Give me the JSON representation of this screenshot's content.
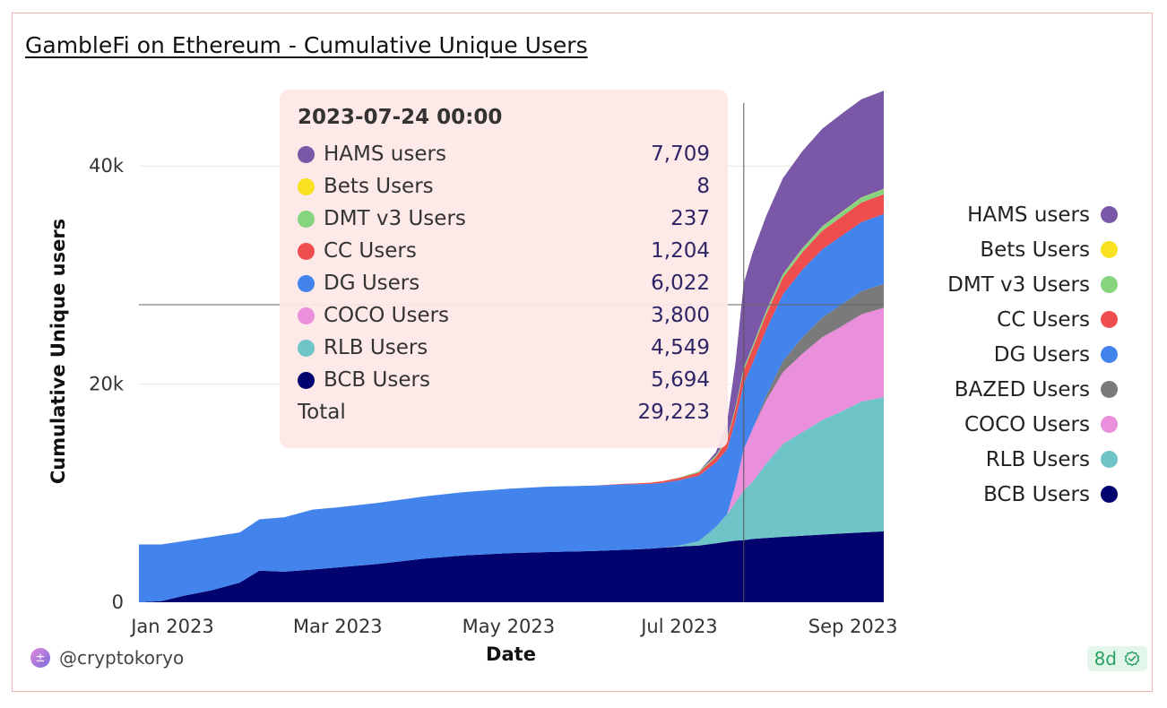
{
  "title": "GambleFi on Ethereum - Cumulative Unique Users",
  "author": "@cryptokoryo",
  "badge": "8d",
  "colors": {
    "HAMS users": "#7b57a8",
    "Bets Users": "#f7e120",
    "DMT v3 Users": "#86d47e",
    "CC Users": "#f04e4e",
    "DG Users": "#4383ec",
    "BAZED Users": "#7a7a7a",
    "COCO Users": "#ea8fdc",
    "RLB Users": "#6fc4c8",
    "BCB Users": "#02036f"
  },
  "legend": [
    "HAMS users",
    "Bets Users",
    "DMT v3 Users",
    "CC Users",
    "DG Users",
    "BAZED Users",
    "COCO Users",
    "RLB Users",
    "BCB Users"
  ],
  "tooltip": {
    "date": "2023-07-24 00:00",
    "rows": [
      {
        "name": "HAMS users",
        "value": "7,709"
      },
      {
        "name": "Bets Users",
        "value": "8"
      },
      {
        "name": "DMT v3 Users",
        "value": "237"
      },
      {
        "name": "CC Users",
        "value": "1,204"
      },
      {
        "name": "DG Users",
        "value": "6,022"
      },
      {
        "name": "COCO Users",
        "value": "3,800"
      },
      {
        "name": "RLB Users",
        "value": "4,549"
      },
      {
        "name": "BCB Users",
        "value": "5,694"
      }
    ],
    "total_label": "Total",
    "total_value": "29,223"
  },
  "chart_data": {
    "type": "area",
    "stacked": true,
    "xlabel": "Date",
    "ylabel": "Cumulative Unique users",
    "ylim": [
      0,
      47000
    ],
    "yticks": [
      0,
      20000,
      40000
    ],
    "ytick_labels": [
      "0",
      "20k",
      "40k"
    ],
    "xticks": [
      "2023-01-01",
      "2023-03-01",
      "2023-05-01",
      "2023-07-01",
      "2023-09-01"
    ],
    "xtick_labels": [
      "Jan 2023",
      "Mar 2023",
      "May 2023",
      "Jul 2023",
      "Sep 2023"
    ],
    "xlim": [
      "2022-12-20",
      "2023-09-12"
    ],
    "hover_date": "2023-07-24",
    "x": [
      "2022-12-20",
      "2022-12-28",
      "2023-01-05",
      "2023-01-15",
      "2023-01-25",
      "2023-02-01",
      "2023-02-10",
      "2023-02-20",
      "2023-03-01",
      "2023-03-15",
      "2023-04-01",
      "2023-04-15",
      "2023-05-01",
      "2023-05-15",
      "2023-06-01",
      "2023-06-10",
      "2023-06-20",
      "2023-06-25",
      "2023-07-01",
      "2023-07-08",
      "2023-07-14",
      "2023-07-18",
      "2023-07-21",
      "2023-07-24",
      "2023-07-27",
      "2023-08-01",
      "2023-08-07",
      "2023-08-14",
      "2023-08-21",
      "2023-08-28",
      "2023-09-04",
      "2023-09-12"
    ],
    "series": [
      {
        "name": "BCB Users",
        "values": [
          0,
          100,
          600,
          1100,
          1800,
          2900,
          2800,
          3000,
          3200,
          3500,
          4000,
          4300,
          4500,
          4600,
          4700,
          4800,
          4900,
          5000,
          5100,
          5200,
          5400,
          5550,
          5650,
          5694,
          5800,
          5900,
          6000,
          6100,
          6200,
          6300,
          6400,
          6500
        ]
      },
      {
        "name": "RLB Users",
        "values": [
          0,
          0,
          0,
          0,
          0,
          0,
          0,
          0,
          0,
          0,
          0,
          0,
          0,
          0,
          0,
          0,
          0,
          0,
          100,
          400,
          1500,
          2500,
          3500,
          4549,
          5200,
          6800,
          8500,
          9500,
          10500,
          11200,
          12000,
          12300
        ]
      },
      {
        "name": "COCO Users",
        "values": [
          0,
          0,
          0,
          0,
          0,
          0,
          0,
          0,
          0,
          0,
          0,
          0,
          0,
          0,
          0,
          0,
          0,
          0,
          0,
          0,
          0,
          0,
          1500,
          3800,
          4800,
          5800,
          6600,
          7200,
          7600,
          7800,
          8000,
          8200
        ]
      },
      {
        "name": "BAZED Users",
        "values": [
          0,
          0,
          0,
          0,
          0,
          0,
          0,
          0,
          0,
          0,
          0,
          0,
          0,
          0,
          0,
          0,
          0,
          0,
          0,
          0,
          0,
          0,
          0,
          0,
          0,
          400,
          1000,
          1500,
          1800,
          2000,
          2100,
          2200
        ]
      },
      {
        "name": "DG Users",
        "values": [
          5300,
          5200,
          5000,
          4900,
          4600,
          4700,
          5000,
          5500,
          5500,
          5600,
          5700,
          5800,
          5900,
          6000,
          6000,
          6000,
          5950,
          5950,
          6000,
          6000,
          5900,
          5950,
          6000,
          6022,
          6050,
          6100,
          6150,
          6200,
          6250,
          6300,
          6350,
          6400
        ]
      },
      {
        "name": "CC Users",
        "values": [
          0,
          0,
          0,
          0,
          0,
          0,
          0,
          0,
          0,
          0,
          0,
          0,
          0,
          0,
          0,
          50,
          100,
          150,
          200,
          300,
          500,
          800,
          1000,
          1204,
          1300,
          1400,
          1500,
          1600,
          1700,
          1750,
          1800,
          1800
        ]
      },
      {
        "name": "DMT v3 Users",
        "values": [
          0,
          0,
          0,
          0,
          0,
          0,
          0,
          0,
          0,
          0,
          0,
          0,
          0,
          0,
          0,
          0,
          0,
          0,
          50,
          100,
          150,
          180,
          200,
          237,
          270,
          300,
          330,
          360,
          390,
          420,
          450,
          480
        ]
      },
      {
        "name": "Bets Users",
        "values": [
          0,
          0,
          0,
          0,
          0,
          0,
          0,
          0,
          0,
          0,
          0,
          0,
          0,
          0,
          0,
          0,
          0,
          0,
          0,
          0,
          0,
          3,
          5,
          8,
          10,
          12,
          14,
          16,
          18,
          20,
          22,
          24
        ]
      },
      {
        "name": "HAMS users",
        "values": [
          0,
          0,
          0,
          0,
          0,
          0,
          0,
          0,
          0,
          0,
          0,
          0,
          0,
          0,
          0,
          0,
          0,
          0,
          0,
          0,
          300,
          1500,
          4000,
          7709,
          8500,
          8700,
          8800,
          8900,
          8950,
          9000,
          9000,
          9000
        ]
      }
    ]
  }
}
